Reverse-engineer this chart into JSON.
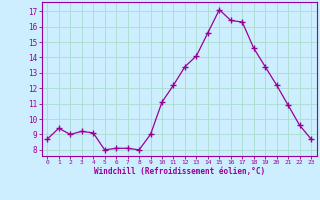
{
  "x": [
    0,
    1,
    2,
    3,
    4,
    5,
    6,
    7,
    8,
    9,
    10,
    11,
    12,
    13,
    14,
    15,
    16,
    17,
    18,
    19,
    20,
    21,
    22,
    23
  ],
  "y": [
    8.7,
    9.4,
    9.0,
    9.2,
    9.1,
    8.0,
    8.1,
    8.1,
    8.0,
    9.0,
    11.1,
    12.2,
    13.4,
    14.1,
    15.6,
    17.1,
    16.4,
    16.3,
    14.6,
    13.4,
    12.2,
    10.9,
    9.6,
    8.7
  ],
  "line_color": "#990099",
  "marker": "+",
  "marker_size": 4,
  "marker_lw": 1.0,
  "bg_color": "#cceeff",
  "grid_color": "#aaddcc",
  "tick_color": "#990099",
  "label_color": "#990099",
  "xlabel": "Windchill (Refroidissement éolien,°C)",
  "ylabel_ticks": [
    8,
    9,
    10,
    11,
    12,
    13,
    14,
    15,
    16,
    17
  ],
  "ylim": [
    7.6,
    17.6
  ],
  "xlim": [
    -0.5,
    23.5
  ]
}
